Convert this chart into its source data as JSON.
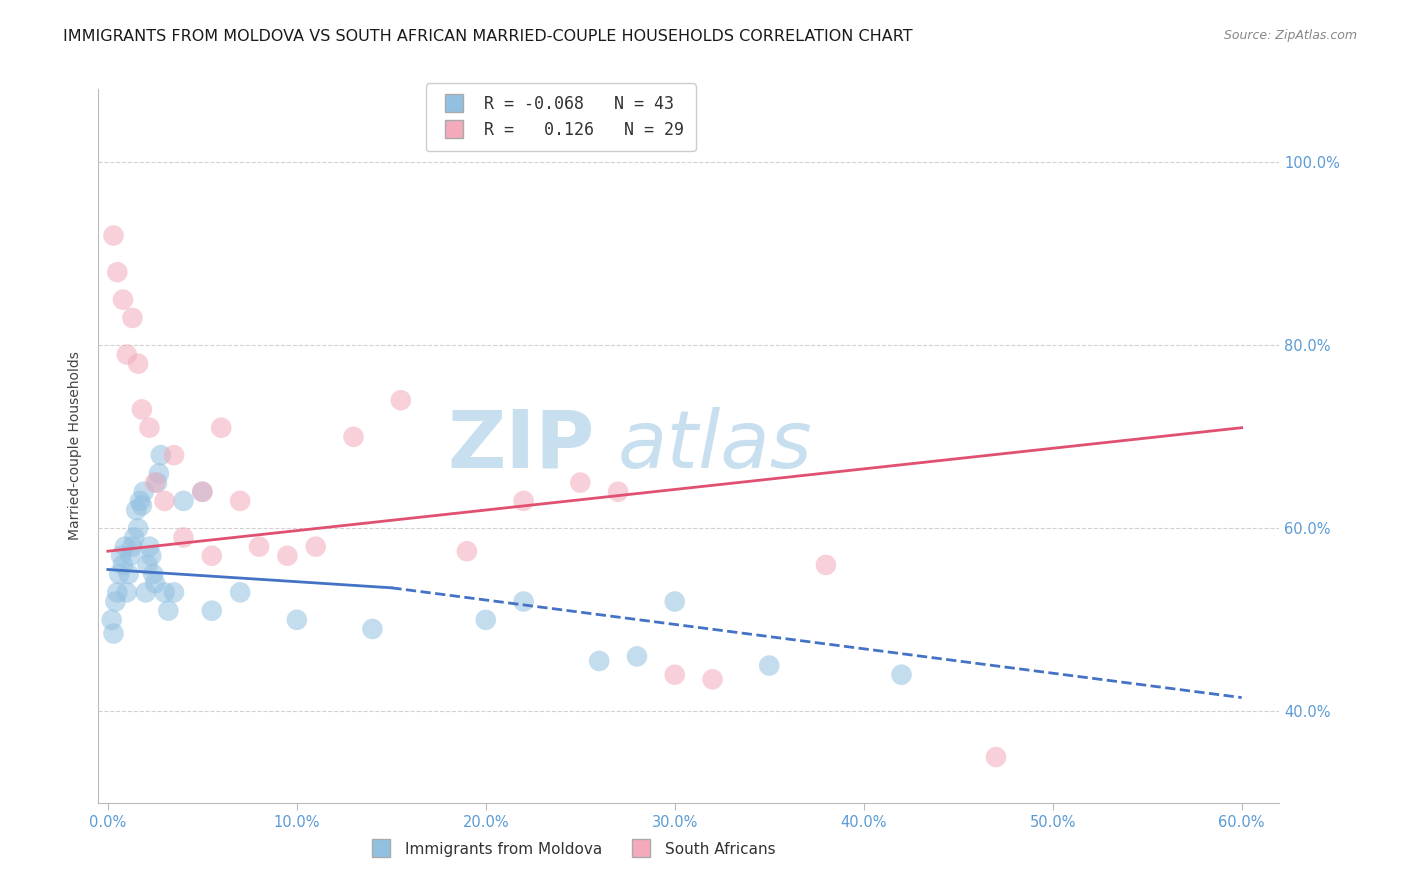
{
  "title": "IMMIGRANTS FROM MOLDOVA VS SOUTH AFRICAN MARRIED-COUPLE HOUSEHOLDS CORRELATION CHART",
  "source": "Source: ZipAtlas.com",
  "ylabel": "Married-couple Households",
  "x_tick_labels": [
    "0.0%",
    "10.0%",
    "20.0%",
    "30.0%",
    "40.0%",
    "50.0%",
    "60.0%"
  ],
  "x_tick_vals": [
    0.0,
    10.0,
    20.0,
    30.0,
    40.0,
    50.0,
    60.0
  ],
  "y_tick_labels": [
    "40.0%",
    "60.0%",
    "80.0%",
    "100.0%"
  ],
  "y_tick_vals": [
    40.0,
    60.0,
    80.0,
    100.0
  ],
  "xlim": [
    -0.5,
    62.0
  ],
  "ylim": [
    30.0,
    108.0
  ],
  "legend_blue_r": "-0.068",
  "legend_blue_n": "43",
  "legend_pink_r": "0.126",
  "legend_pink_n": "29",
  "blue_color": "#92C0E0",
  "pink_color": "#F4AABB",
  "blue_line_color": "#4472C4",
  "pink_line_color": "#E05070",
  "watermark_color": "#C8DFF0",
  "background_color": "#FFFFFF",
  "grid_color": "#CCCCCC",
  "right_axis_color": "#5B9BD5",
  "title_fontsize": 11.5,
  "axis_label_fontsize": 10,
  "tick_fontsize": 10.5,
  "blue_scatter_x": [
    0.2,
    0.3,
    0.4,
    0.5,
    0.6,
    0.7,
    0.8,
    0.9,
    1.0,
    1.1,
    1.2,
    1.3,
    1.4,
    1.5,
    1.6,
    1.7,
    1.8,
    1.9,
    2.0,
    2.1,
    2.2,
    2.3,
    2.4,
    2.5,
    2.6,
    2.7,
    2.8,
    3.0,
    3.2,
    3.5,
    4.0,
    5.0,
    5.5,
    7.0,
    10.0,
    14.0,
    20.0,
    22.0,
    26.0,
    28.0,
    30.0,
    35.0,
    42.0
  ],
  "blue_scatter_y": [
    50.0,
    48.5,
    52.0,
    53.0,
    55.0,
    57.0,
    56.0,
    58.0,
    53.0,
    55.0,
    57.0,
    58.0,
    59.0,
    62.0,
    60.0,
    63.0,
    62.5,
    64.0,
    53.0,
    56.0,
    58.0,
    57.0,
    55.0,
    54.0,
    65.0,
    66.0,
    68.0,
    53.0,
    51.0,
    53.0,
    63.0,
    64.0,
    51.0,
    53.0,
    50.0,
    49.0,
    50.0,
    52.0,
    45.5,
    46.0,
    52.0,
    45.0,
    44.0
  ],
  "pink_scatter_x": [
    0.3,
    0.5,
    0.8,
    1.0,
    1.3,
    1.6,
    1.8,
    2.2,
    2.5,
    3.0,
    3.5,
    4.0,
    5.0,
    5.5,
    6.0,
    7.0,
    8.0,
    9.5,
    11.0,
    13.0,
    15.5,
    19.0,
    22.0,
    25.0,
    27.0,
    30.0,
    32.0,
    38.0,
    47.0
  ],
  "pink_scatter_y": [
    92.0,
    88.0,
    85.0,
    79.0,
    83.0,
    78.0,
    73.0,
    71.0,
    65.0,
    63.0,
    68.0,
    59.0,
    64.0,
    57.0,
    71.0,
    63.0,
    58.0,
    57.0,
    58.0,
    70.0,
    74.0,
    57.5,
    63.0,
    65.0,
    64.0,
    44.0,
    43.5,
    56.0,
    35.0
  ],
  "blue_line_x0": 0.0,
  "blue_line_y0": 55.5,
  "blue_line_x1": 15.0,
  "blue_line_y1": 53.5,
  "blue_dash_x0": 15.0,
  "blue_dash_y0": 53.5,
  "blue_dash_x1": 60.0,
  "blue_dash_y1": 41.5,
  "pink_line_x0": 0.0,
  "pink_line_y0": 57.5,
  "pink_line_x1": 60.0,
  "pink_line_y1": 71.0
}
